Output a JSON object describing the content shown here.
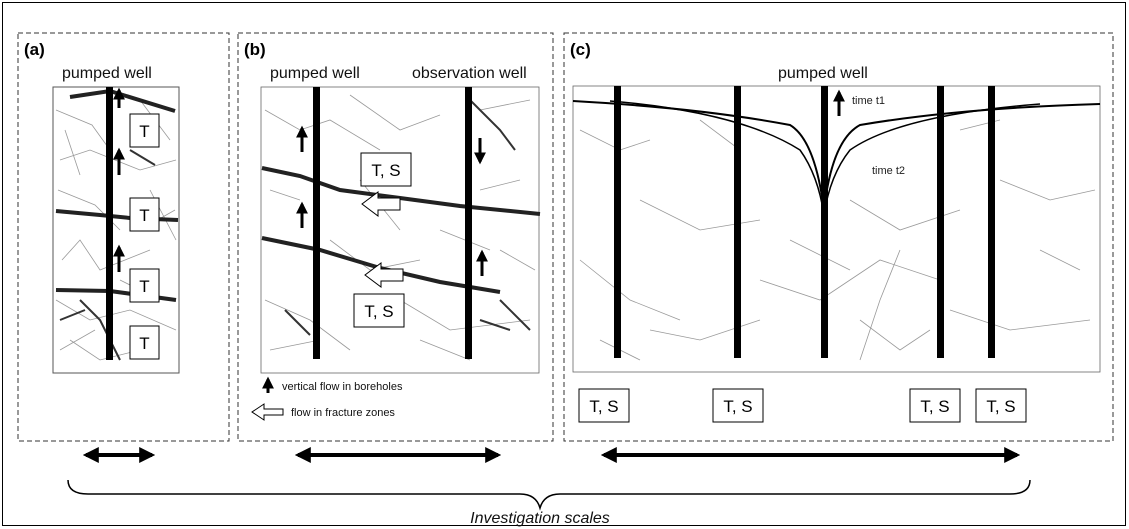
{
  "panels": {
    "a": {
      "label": "(a)",
      "well_label": "pumped well",
      "boxes": [
        "T",
        "T",
        "T",
        "T"
      ]
    },
    "b": {
      "label": "(b)",
      "pumped_label": "pumped well",
      "observation_label": "observation well",
      "boxes": [
        "T, S",
        "T, S"
      ],
      "legend": {
        "vertical": "vertical flow in boreholes",
        "fracture": "flow in fracture zones"
      }
    },
    "c": {
      "label": "(c)",
      "well_label": "pumped well",
      "time1": "time t1",
      "time2": "time t2",
      "boxes": [
        "T, S",
        "T, S",
        "T, S",
        "T, S"
      ]
    }
  },
  "scale_caption": "Investigation scales",
  "colors": {
    "line": "#000000",
    "fracture": "#888888",
    "background": "#ffffff"
  }
}
